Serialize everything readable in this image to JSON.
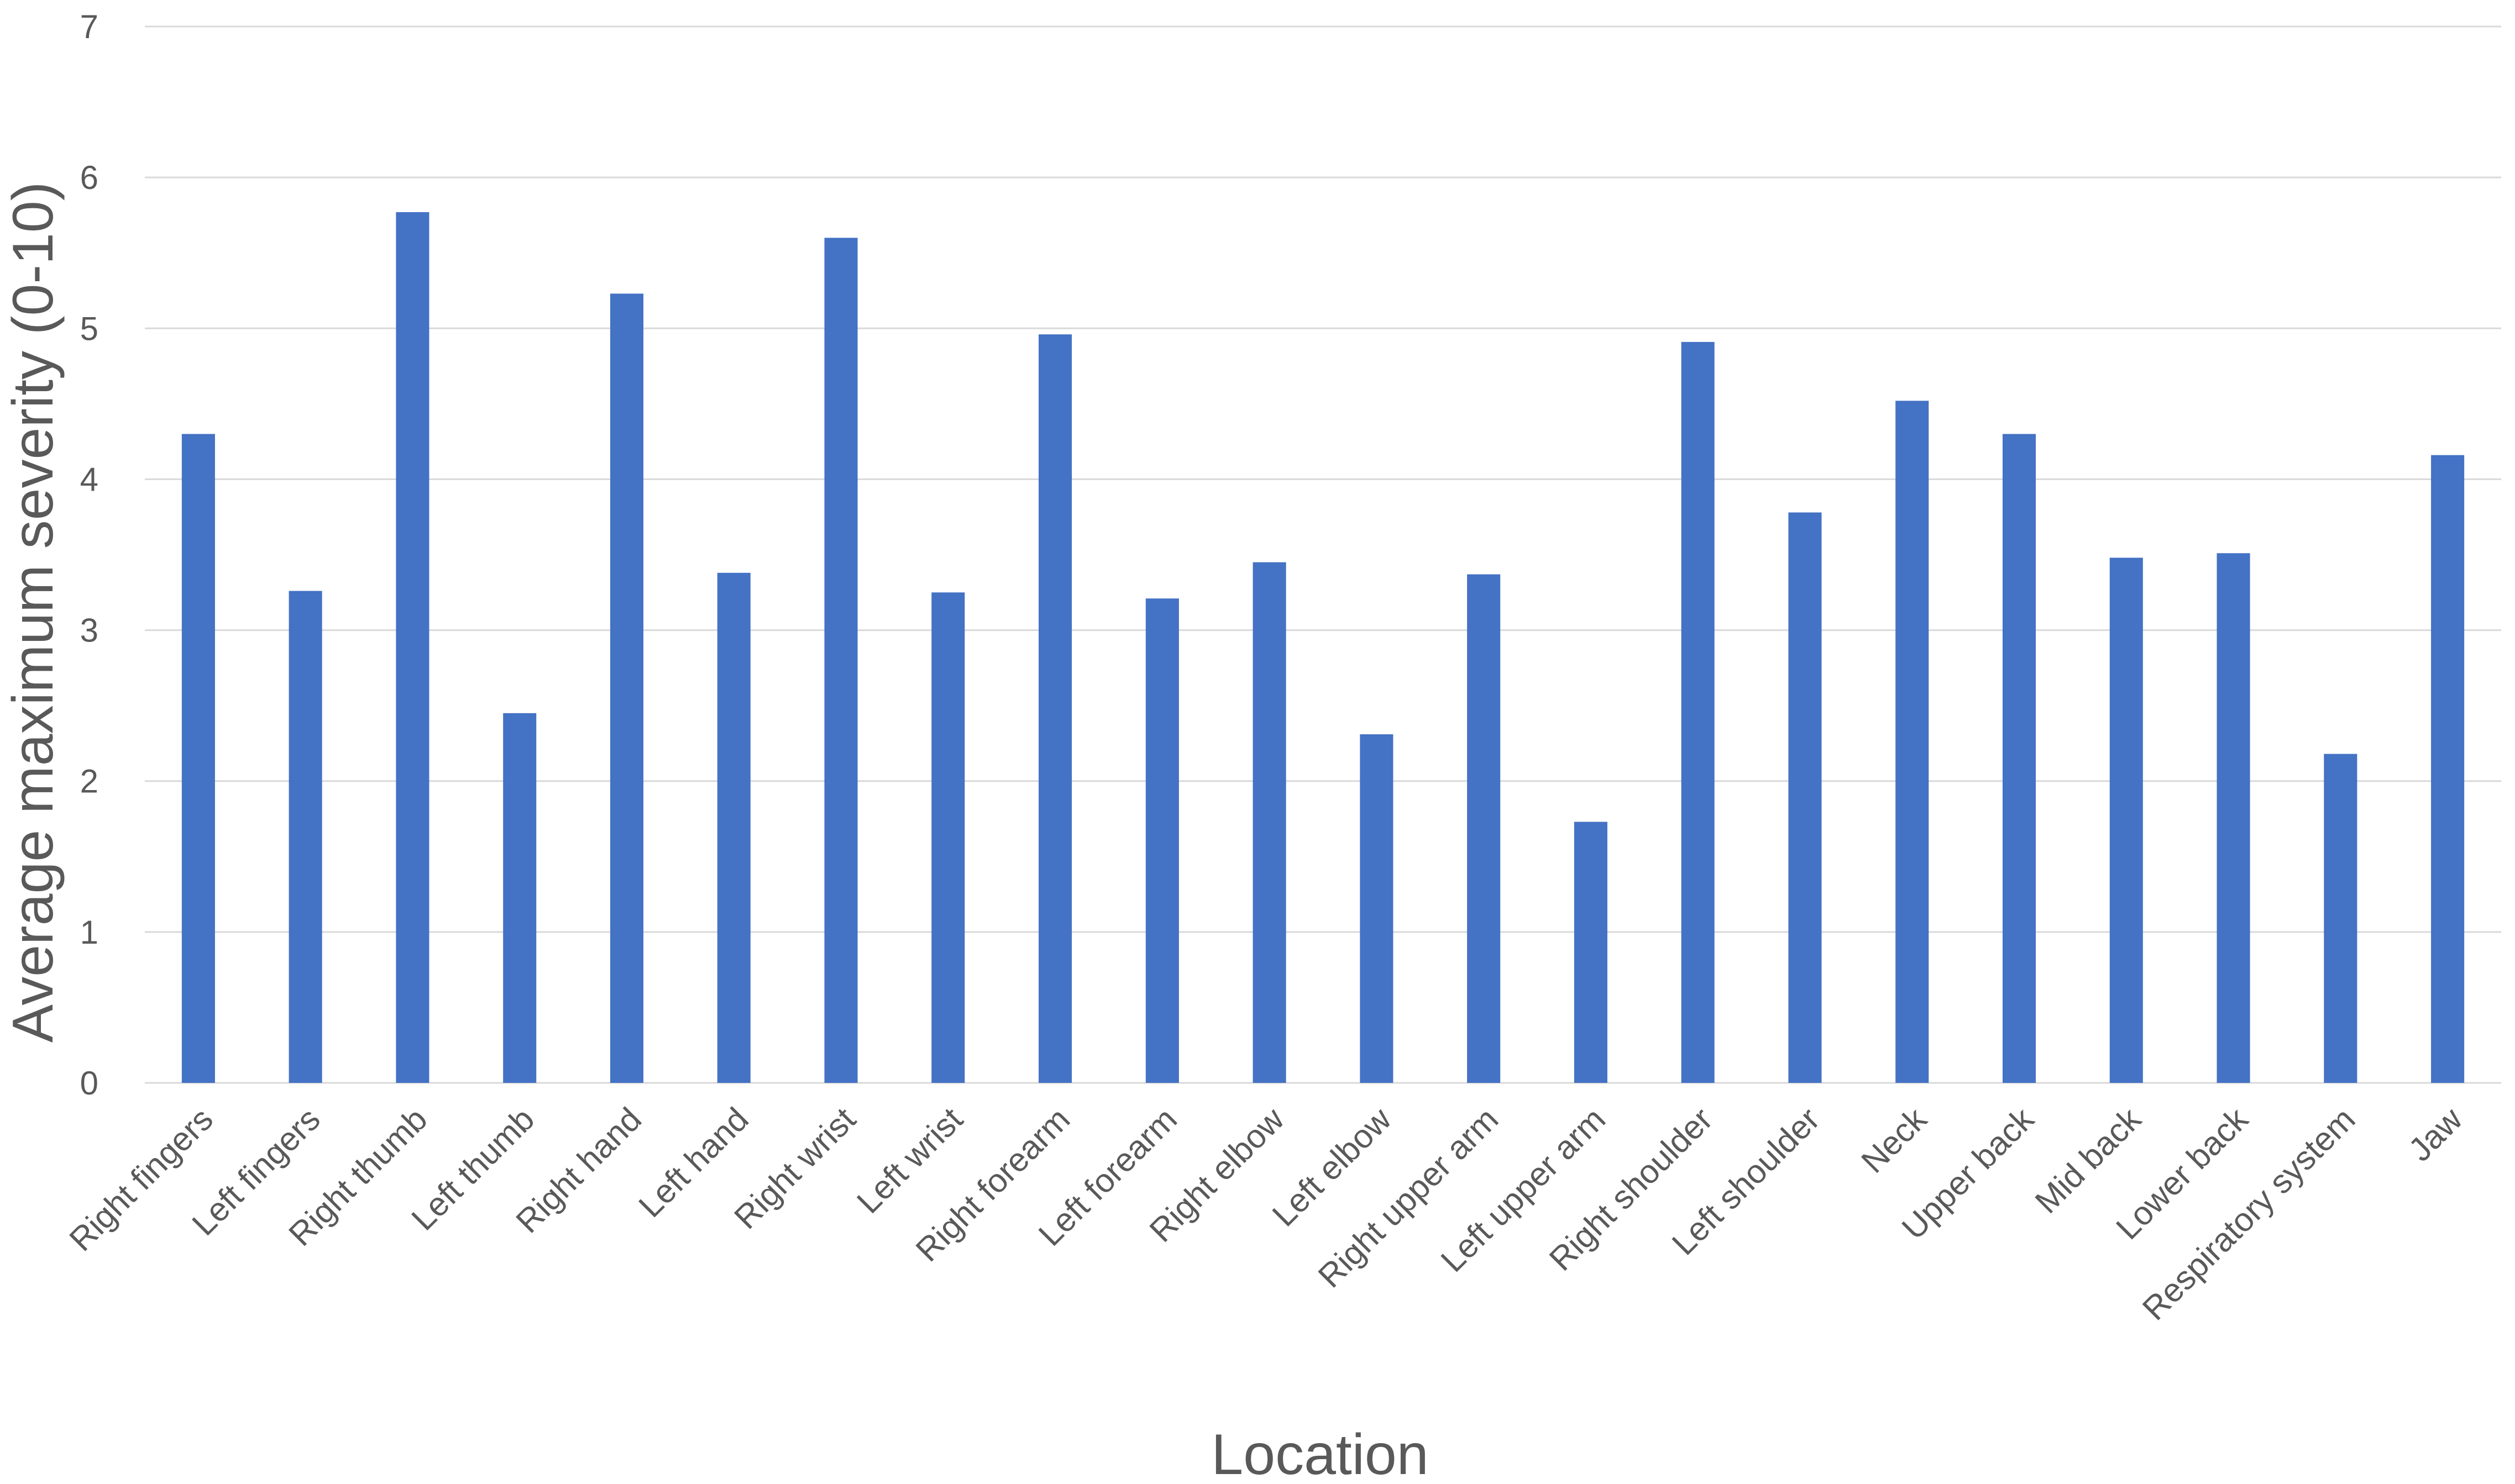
{
  "chart_data": {
    "type": "bar",
    "title": "",
    "xlabel": "Location",
    "ylabel": "Average maximum severity (0-10)",
    "ylim": [
      0,
      7
    ],
    "yticks": [
      0,
      1,
      2,
      3,
      4,
      5,
      6,
      7
    ],
    "grid": true,
    "legend": "none",
    "bar_color": "#4472c4",
    "categories": [
      "Right fingers",
      "Left fingers",
      "Right thumb",
      "Left thumb",
      "Right hand",
      "Left hand",
      "Right wrist",
      "Left wrist",
      "Right forearm",
      "Left forearm",
      "Right elbow",
      "Left elbow",
      "Right upper arm",
      "Left upper arm",
      "Right shoulder",
      "Left shoulder",
      "Neck",
      "Upper back",
      "Mid back",
      "Lower back",
      "Respiratory system",
      "Jaw"
    ],
    "values": [
      4.3,
      3.26,
      5.77,
      2.45,
      5.23,
      3.38,
      5.6,
      3.25,
      4.96,
      3.21,
      3.45,
      2.31,
      3.37,
      1.73,
      4.91,
      3.78,
      4.52,
      4.3,
      3.48,
      3.51,
      2.18,
      4.16
    ]
  }
}
